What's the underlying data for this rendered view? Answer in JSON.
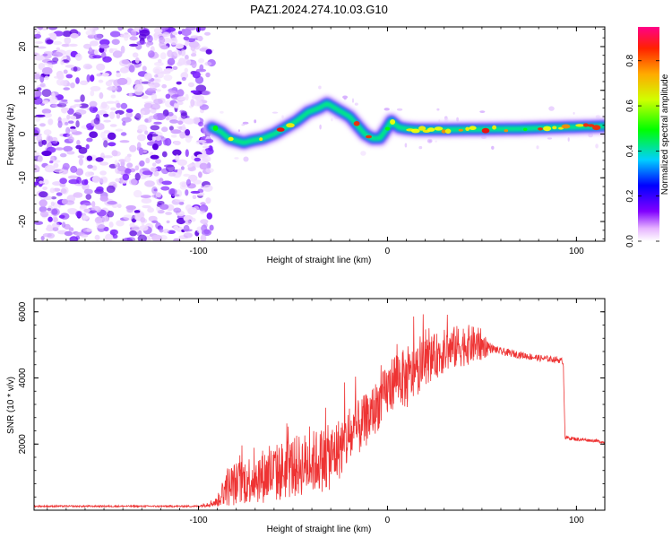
{
  "title": "PAZ1.2024.274.10.03.G10",
  "colors": {
    "snr_line": "#ee3333",
    "frame": "#000000"
  },
  "chart_data": [
    {
      "type": "heatmap",
      "name": "spectrogram",
      "xlabel": "Height of straight line (km)",
      "ylabel": "Frequency (Hz)",
      "xlim": [
        -187,
        115
      ],
      "ylim": [
        -24.5,
        24.5
      ],
      "x_ticks": [
        -100,
        0,
        100
      ],
      "y_ticks": [
        -20,
        -10,
        0,
        10,
        20
      ],
      "colorbar": {
        "label": "Normalized spectral amplitude",
        "range": [
          0,
          0.95
        ],
        "ticks": [
          0,
          0.2,
          0.4,
          0.6,
          0.8
        ],
        "colormap": [
          "#ffffff",
          "#ff00ff",
          "#0000ff",
          "#00ffff",
          "#00ff00",
          "#ffff00",
          "#ff8800",
          "#ff0000"
        ]
      },
      "noise_region_km": [
        -187,
        -93
      ],
      "ridge": {
        "x": [
          -93,
          -88,
          -84,
          -80,
          -76,
          -72,
          -66,
          -60,
          -54,
          -48,
          -42,
          -36,
          -32,
          -28,
          -24,
          -20,
          -16,
          -12,
          -8,
          -4,
          0,
          2,
          6,
          10,
          15,
          30,
          50,
          70,
          90,
          115
        ],
        "y": [
          1.5,
          0.5,
          -1,
          -1.5,
          -2,
          -1.5,
          -1,
          0,
          1.5,
          3,
          5,
          6,
          7,
          6,
          5,
          4,
          2,
          0,
          -1,
          -1,
          1.5,
          3,
          1.5,
          1.2,
          1.0,
          1.0,
          1.1,
          1.2,
          1.5,
          1.8
        ]
      }
    },
    {
      "type": "line",
      "name": "snr",
      "xlabel": "Height of straight line (km)",
      "ylabel": "SNR (10 * v/v)",
      "xlim": [
        -187,
        115
      ],
      "ylim": [
        0,
        6400
      ],
      "x_ticks": [
        -100,
        0,
        100
      ],
      "y_ticks": [
        2000,
        4000,
        6000
      ],
      "envelope": {
        "x": [
          -187,
          -100,
          -90,
          -86,
          -80,
          -70,
          -60,
          -50,
          -40,
          -30,
          -20,
          -10,
          0,
          5,
          10,
          20,
          30,
          40,
          50,
          60,
          70,
          80,
          90,
          93,
          94,
          100,
          110,
          115
        ],
        "y": [
          120,
          120,
          250,
          700,
          800,
          1000,
          1100,
          1300,
          1450,
          1600,
          2200,
          2800,
          3600,
          4100,
          3900,
          4500,
          4800,
          5000,
          5000,
          4800,
          4700,
          4600,
          4550,
          4500,
          2200,
          2150,
          2100,
          2050
        ]
      },
      "noise_amplitude": {
        "x": [
          -187,
          -100,
          -90,
          -86,
          -60,
          -30,
          -10,
          0,
          10,
          20,
          40,
          50,
          55,
          93,
          95,
          115
        ],
        "y": [
          25,
          25,
          150,
          600,
          900,
          1000,
          800,
          800,
          900,
          700,
          650,
          500,
          120,
          90,
          60,
          40
        ]
      }
    }
  ]
}
